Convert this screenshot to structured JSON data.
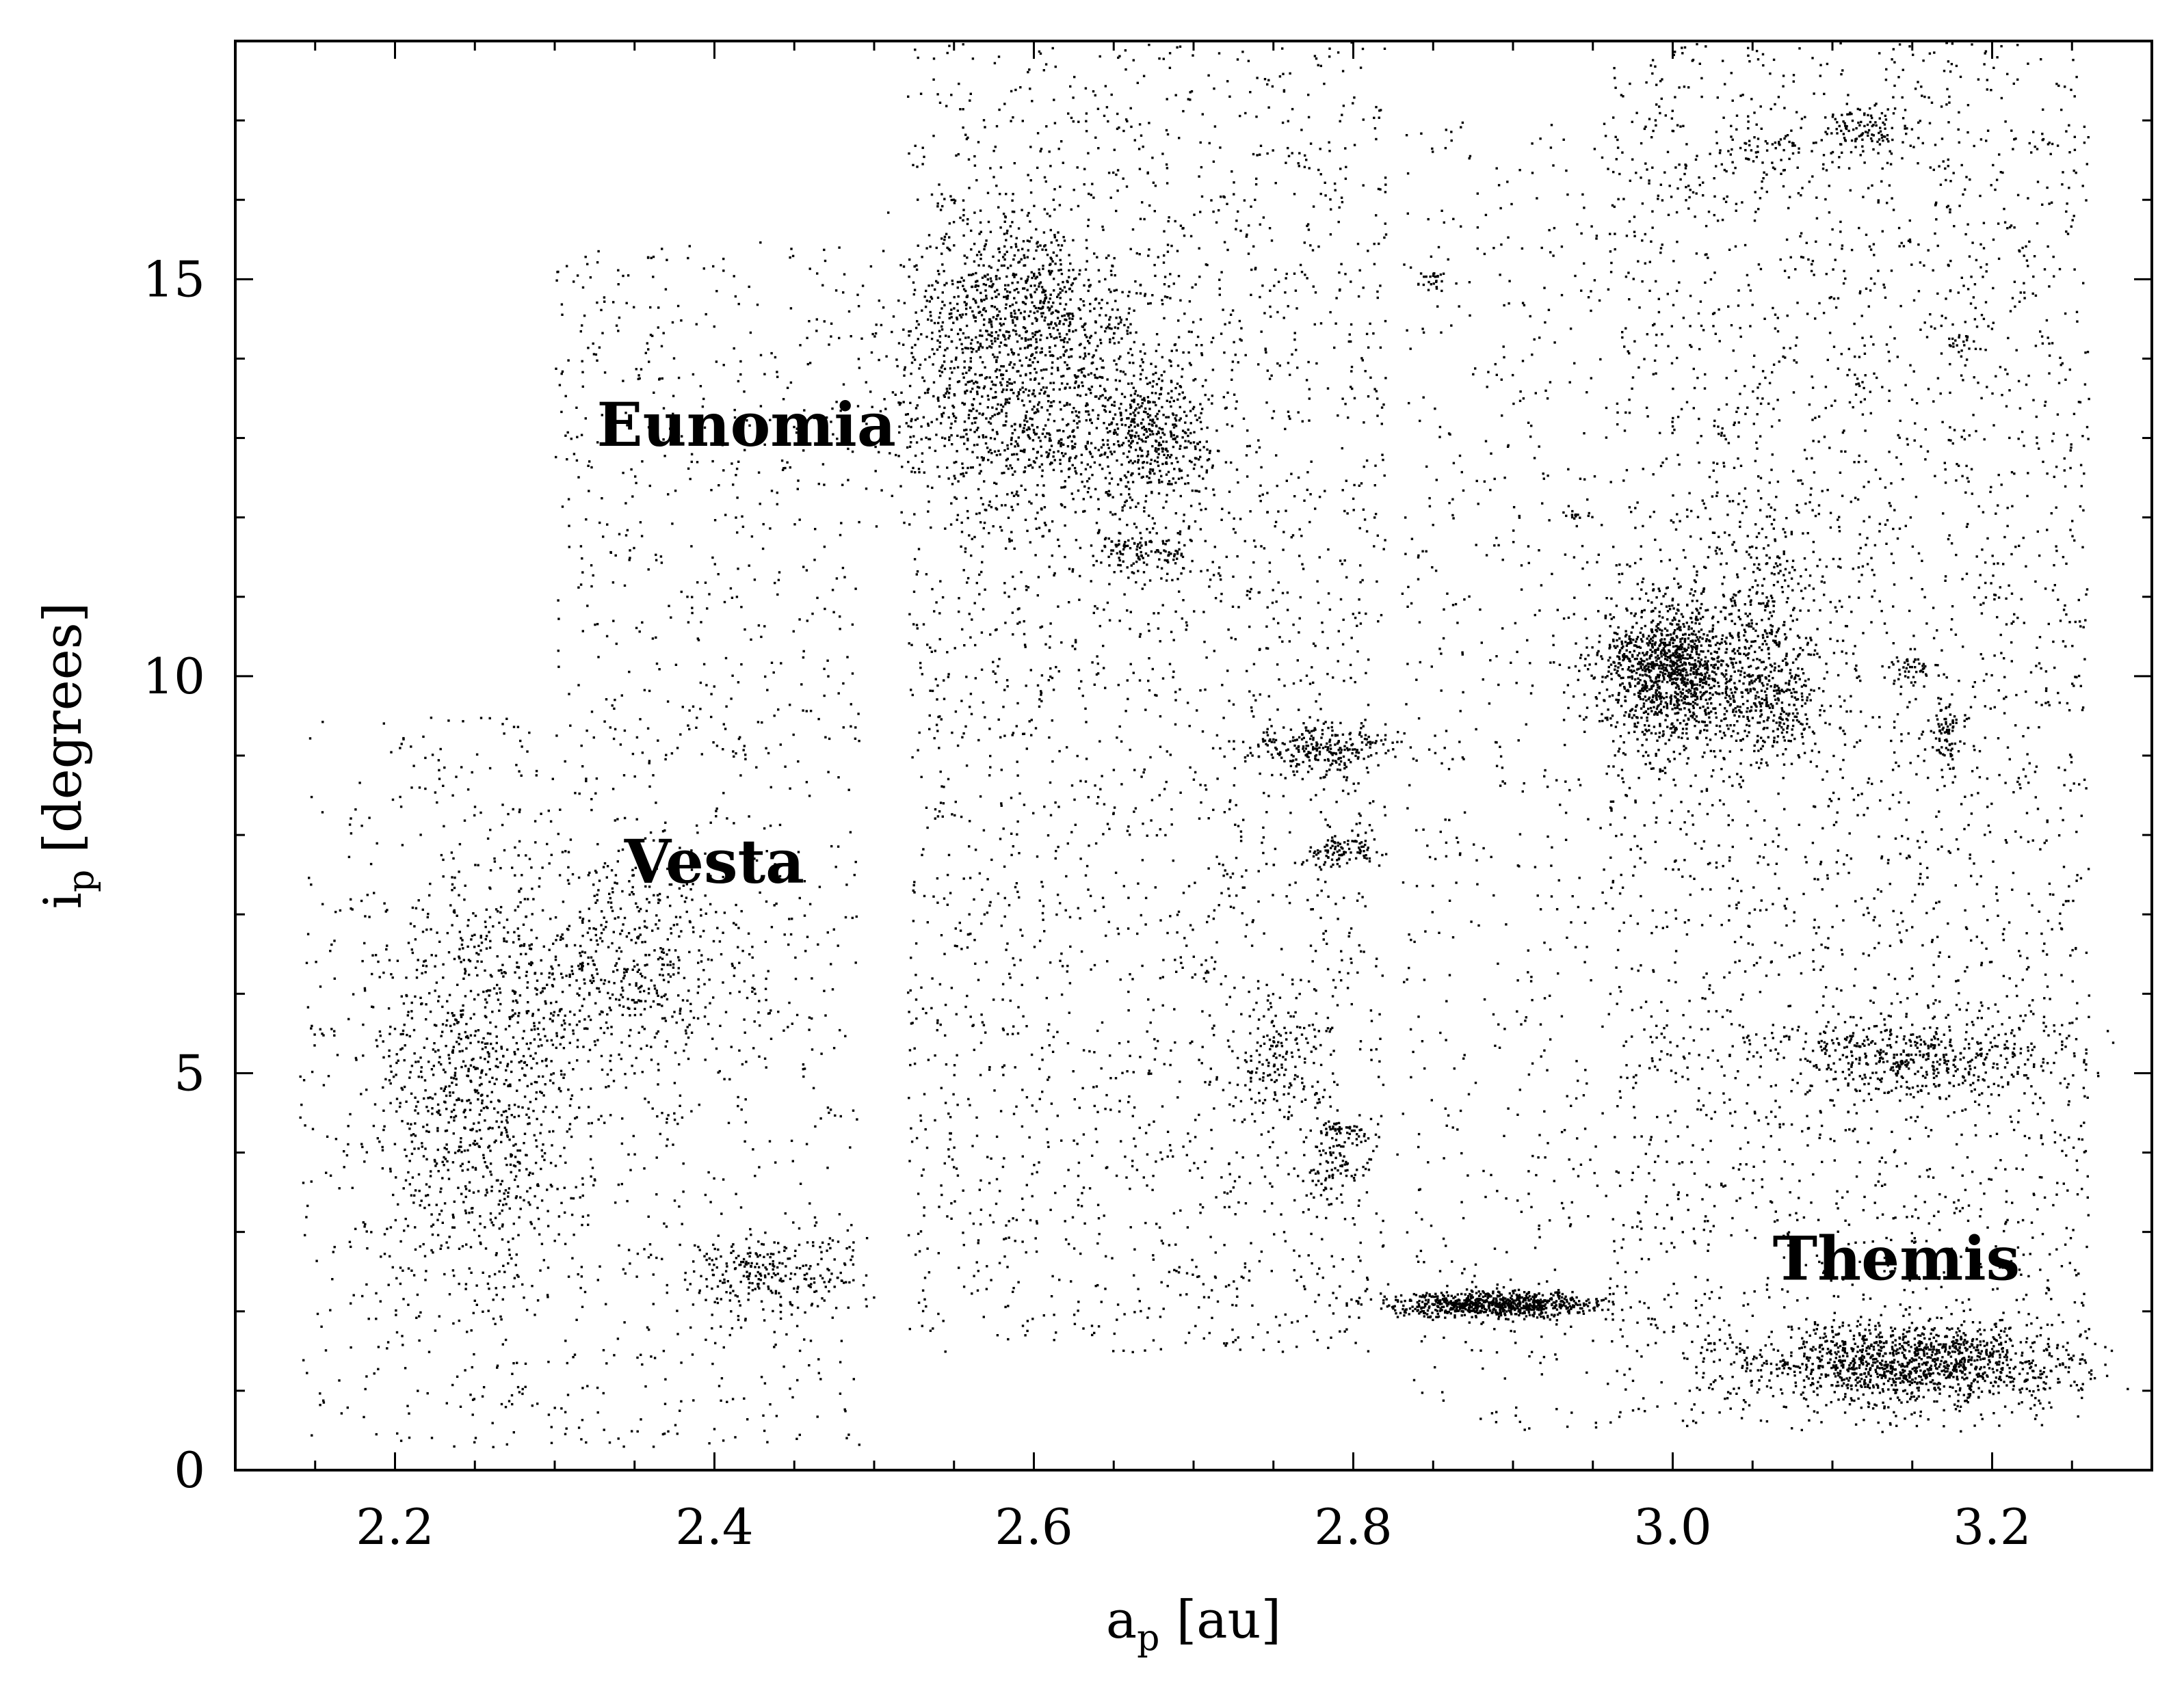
{
  "chart_data": {
    "type": "scatter",
    "title": "",
    "xlabel": {
      "main": "a",
      "sub": "p",
      "unit": " [au]"
    },
    "ylabel": {
      "main": "i",
      "sub": "p",
      "unit": " [degrees]"
    },
    "xlim": [
      2.1,
      3.3
    ],
    "ylim": [
      0,
      18
    ],
    "x_ticks": [
      2.2,
      2.4,
      2.6,
      2.8,
      3.0,
      3.2
    ],
    "x_tick_labels": [
      "2.2",
      "2.4",
      "2.6",
      "2.8",
      "3.0",
      "3.2"
    ],
    "y_ticks": [
      0,
      5,
      10,
      15
    ],
    "y_tick_labels": [
      "0",
      "5",
      "10",
      "15"
    ],
    "x_minor_step": 0.05,
    "y_minor_step": 1,
    "grid": false,
    "legend": false,
    "marker_color": "#000000",
    "annotations": [
      {
        "text": "Eunomia",
        "x": 2.42,
        "y": 12.9
      },
      {
        "text": "Vesta",
        "x": 2.4,
        "y": 7.4
      },
      {
        "text": "Themis",
        "x": 3.14,
        "y": 2.4
      }
    ],
    "series": [
      {
        "description": "background",
        "regions": [
          {
            "x": [
              2.14,
              2.49
            ],
            "y": [
              0.3,
              9.5
            ],
            "n": 900
          },
          {
            "x": [
              2.3,
              2.49
            ],
            "y": [
              9.0,
              15.5
            ],
            "n": 450
          },
          {
            "x": [
              2.52,
              2.82
            ],
            "y": [
              1.5,
              18.0
            ],
            "n": 2600
          },
          {
            "x": [
              2.83,
              2.96
            ],
            "y": [
              0.5,
              17.0
            ],
            "n": 600
          },
          {
            "x": [
              2.96,
              3.26
            ],
            "y": [
              0.5,
              18.0
            ],
            "n": 3200
          }
        ]
      },
      {
        "description": "clusters",
        "clusters": [
          {
            "x": 2.25,
            "y": 4.6,
            "sx": 0.035,
            "sy": 1.3,
            "n": 900
          },
          {
            "x": 2.34,
            "y": 6.4,
            "sx": 0.05,
            "sy": 0.8,
            "n": 600
          },
          {
            "x": 2.43,
            "y": 2.5,
            "sx": 0.03,
            "sy": 0.25,
            "n": 250
          },
          {
            "x": 2.6,
            "y": 13.4,
            "sx": 0.05,
            "sy": 0.8,
            "n": 1100
          },
          {
            "x": 2.59,
            "y": 14.9,
            "sx": 0.03,
            "sy": 0.5,
            "n": 500
          },
          {
            "x": 2.68,
            "y": 13.0,
            "sx": 0.02,
            "sy": 0.4,
            "n": 300
          },
          {
            "x": 2.67,
            "y": 11.6,
            "sx": 0.015,
            "sy": 0.15,
            "n": 120
          },
          {
            "x": 2.78,
            "y": 9.1,
            "sx": 0.025,
            "sy": 0.15,
            "n": 250
          },
          {
            "x": 2.79,
            "y": 7.8,
            "sx": 0.01,
            "sy": 0.1,
            "n": 90
          },
          {
            "x": 2.75,
            "y": 5.2,
            "sx": 0.015,
            "sy": 0.4,
            "n": 150
          },
          {
            "x": 2.79,
            "y": 4.3,
            "sx": 0.008,
            "sy": 0.05,
            "n": 40
          },
          {
            "x": 2.79,
            "y": 3.8,
            "sx": 0.012,
            "sy": 0.25,
            "n": 90
          },
          {
            "x": 2.89,
            "y": 2.1,
            "sx": 0.032,
            "sy": 0.08,
            "n": 800
          },
          {
            "x": 2.85,
            "y": 15.0,
            "sx": 0.006,
            "sy": 0.05,
            "n": 25
          },
          {
            "x": 2.94,
            "y": 12.0,
            "sx": 0.006,
            "sy": 0.04,
            "n": 15
          },
          {
            "x": 3.0,
            "y": 10.1,
            "sx": 0.022,
            "sy": 0.45,
            "n": 1200
          },
          {
            "x": 3.06,
            "y": 9.7,
            "sx": 0.02,
            "sy": 0.4,
            "n": 350
          },
          {
            "x": 3.06,
            "y": 11.0,
            "sx": 0.02,
            "sy": 0.5,
            "n": 200
          },
          {
            "x": 3.17,
            "y": 9.3,
            "sx": 0.004,
            "sy": 0.2,
            "n": 70
          },
          {
            "x": 3.15,
            "y": 10.1,
            "sx": 0.006,
            "sy": 0.1,
            "n": 40
          },
          {
            "x": 3.15,
            "y": 5.2,
            "sx": 0.045,
            "sy": 0.25,
            "n": 450
          },
          {
            "x": 3.15,
            "y": 1.35,
            "sx": 0.05,
            "sy": 0.25,
            "n": 1200
          },
          {
            "x": 3.12,
            "y": 16.9,
            "sx": 0.015,
            "sy": 0.15,
            "n": 100
          },
          {
            "x": 3.18,
            "y": 14.2,
            "sx": 0.005,
            "sy": 0.1,
            "n": 25
          },
          {
            "x": 3.05,
            "y": 16.6,
            "sx": 0.02,
            "sy": 0.2,
            "n": 60
          }
        ]
      }
    ]
  }
}
